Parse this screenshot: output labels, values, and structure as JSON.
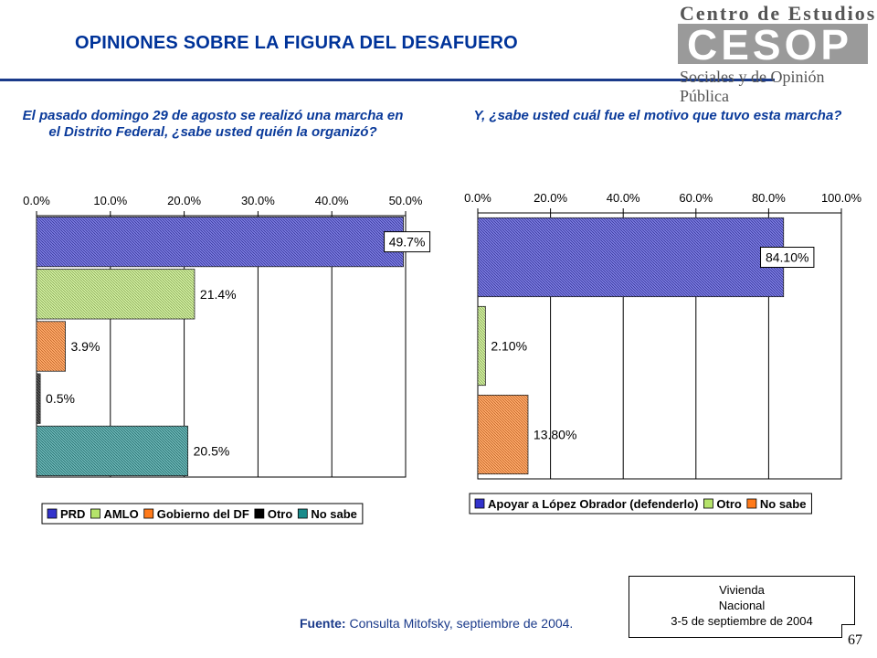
{
  "header": {
    "title": "OPINIONES SOBRE LA FIGURA  DEL DESAFUERO",
    "logo_top": "Centro de Estudios",
    "logo_mid": "CESOP",
    "logo_bottom": "Sociales y de Opinión Pública"
  },
  "questions": {
    "q1": "El pasado domingo 29 de agosto se realizó una marcha en el Distrito Federal, ¿sabe usted quién la organizó?",
    "q2": "Y, ¿sabe usted cuál fue el motivo que tuvo esta marcha?"
  },
  "chart_data": [
    {
      "type": "bar",
      "orientation": "horizontal",
      "series": [
        {
          "name": "PRD",
          "value": 49.7,
          "label": "49.7%",
          "color": "#3333cc"
        },
        {
          "name": "AMLO",
          "value": 21.4,
          "label": "21.4%",
          "color": "#b5e36a"
        },
        {
          "name": "Gobierno del DF",
          "value": 3.9,
          "label": "3.9%",
          "color": "#ff7a1a"
        },
        {
          "name": "Otro",
          "value": 0.5,
          "label": "0.5%",
          "color": "#000000"
        },
        {
          "name": "No sabe",
          "value": 20.5,
          "label": "20.5%",
          "color": "#1a8a8a"
        }
      ],
      "xlim": [
        0,
        50
      ],
      "ticks": [
        "0.0%",
        "10.0%",
        "20.0%",
        "30.0%",
        "40.0%",
        "50.0%"
      ],
      "grid": true,
      "legend_position": "bottom"
    },
    {
      "type": "bar",
      "orientation": "horizontal",
      "series": [
        {
          "name": "Apoyar a López Obrador (defenderlo)",
          "value": 84.1,
          "label": "84.10%",
          "color": "#3333cc"
        },
        {
          "name": "Otro",
          "value": 2.1,
          "label": "2.10%",
          "color": "#b5e36a"
        },
        {
          "name": "No sabe",
          "value": 13.8,
          "label": "13.80%",
          "color": "#ff7a1a"
        }
      ],
      "xlim": [
        0,
        100
      ],
      "ticks": [
        "0.0%",
        "20.0%",
        "40.0%",
        "60.0%",
        "80.0%",
        "100.0%"
      ],
      "grid": true,
      "legend_position": "bottom"
    }
  ],
  "footer": {
    "source_label": "Fuente:",
    "source_text": "Consulta Mitofsky,  septiembre de 2004.",
    "note_lines": [
      "Vivienda",
      "Nacional",
      "3-5 de septiembre de 2004"
    ],
    "page_number": "67"
  }
}
